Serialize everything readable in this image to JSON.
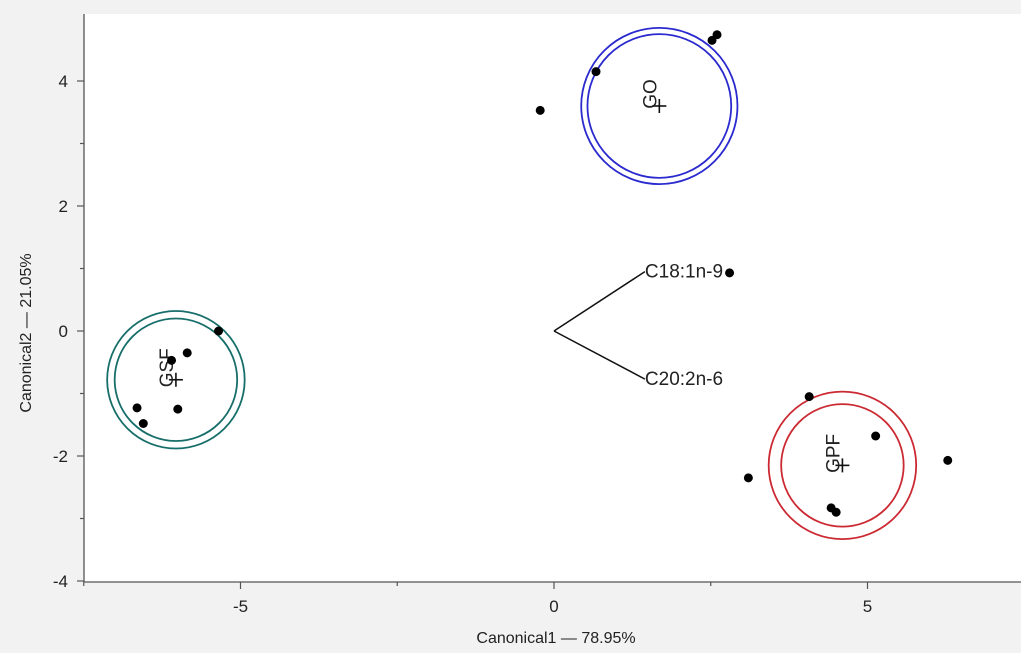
{
  "chart_data": {
    "type": "scatter",
    "title": "",
    "xlabel": "Canonical1 — 78.95%",
    "ylabel": "Canonical2 — 21.05%",
    "xlim": [
      -7.5,
      7.5
    ],
    "ylim": [
      -4,
      4.85
    ],
    "xticks": [
      -5,
      0,
      5
    ],
    "xtick_labels": [
      "-5",
      "0",
      "5"
    ],
    "yticks": [
      -4,
      -2,
      0,
      2,
      4
    ],
    "ytick_labels": [
      "-4",
      "-2",
      "0",
      "2",
      "4"
    ],
    "grid": false,
    "groups": [
      {
        "name": "GO",
        "color": "#2a2acf",
        "centroid": [
          1.68,
          3.6
        ],
        "inner_radius": 1.15,
        "outer_radius": 1.25,
        "points": [
          [
            -0.22,
            3.53
          ],
          [
            0.67,
            4.15
          ],
          [
            2.52,
            4.65
          ],
          [
            2.6,
            4.74
          ]
        ]
      },
      {
        "name": "GSF",
        "color": "#176e6a",
        "centroid": [
          -6.03,
          -0.78
        ],
        "inner_radius": 0.98,
        "outer_radius": 1.1,
        "points": [
          [
            -5.35,
            0.0
          ],
          [
            -5.85,
            -0.35
          ],
          [
            -6.1,
            -0.47
          ],
          [
            -6.65,
            -1.23
          ],
          [
            -6.55,
            -1.48
          ],
          [
            -6.0,
            -1.25
          ]
        ]
      },
      {
        "name": "GPF",
        "color": "#cc2a33",
        "centroid": [
          4.6,
          -2.15
        ],
        "inner_radius": 0.98,
        "outer_radius": 1.18,
        "points": [
          [
            4.07,
            -1.05
          ],
          [
            5.13,
            -1.68
          ],
          [
            6.28,
            -2.07
          ],
          [
            3.1,
            -2.35
          ],
          [
            4.42,
            -2.83
          ],
          [
            4.5,
            -2.9
          ]
        ]
      }
    ],
    "vectors": [
      {
        "name": "C18:1n-9",
        "start": [
          0,
          0
        ],
        "end": [
          1.45,
          0.95
        ]
      },
      {
        "name": "C20:2n-6",
        "start": [
          0,
          0
        ],
        "end": [
          1.45,
          -0.77
        ]
      }
    ],
    "extra_points": [
      [
        2.8,
        0.93
      ]
    ]
  }
}
